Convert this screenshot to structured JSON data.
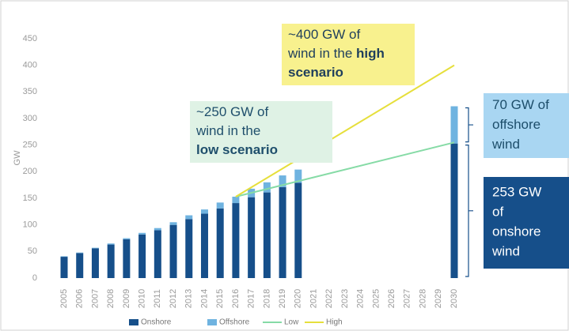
{
  "chart_data": {
    "type": "bar",
    "stacked": true,
    "y_label": "GW",
    "categories": [
      "2005",
      "2006",
      "2007",
      "2008",
      "2009",
      "2010",
      "2011",
      "2012",
      "2013",
      "2014",
      "2015",
      "2016",
      "2017",
      "2018",
      "2019",
      "2020",
      "2021",
      "2022",
      "2023",
      "2024",
      "2025",
      "2026",
      "2027",
      "2028",
      "2029",
      "2030"
    ],
    "series": [
      {
        "name": "Onshore",
        "color": "#164f8a",
        "values": [
          40,
          47,
          56,
          63,
          73,
          82,
          90,
          100,
          111,
          121,
          131,
          141,
          152,
          161,
          171,
          179,
          null,
          null,
          null,
          null,
          null,
          null,
          null,
          null,
          null,
          253
        ]
      },
      {
        "name": "Offshore",
        "color": "#6fb3e0",
        "values": [
          1,
          1,
          1,
          2,
          2,
          3,
          4,
          5,
          7,
          8,
          11,
          12,
          16,
          19,
          22,
          25,
          null,
          null,
          null,
          null,
          null,
          null,
          null,
          null,
          null,
          70
        ]
      },
      {
        "name": "Low",
        "type": "line",
        "color": "#86dba6",
        "x": [
          "2016",
          "2030"
        ],
        "values": [
          153,
          255
        ]
      },
      {
        "name": "High",
        "type": "line",
        "color": "#e6df3c",
        "x": [
          "2016",
          "2030"
        ],
        "values": [
          153,
          400
        ]
      }
    ],
    "ylim": [
      0,
      450
    ],
    "yticks": [
      0,
      50,
      100,
      150,
      200,
      250,
      300,
      350,
      400,
      450
    ],
    "annotations": [
      {
        "name": "high",
        "fill": "#f8f18e",
        "color": "#1f3f5c",
        "lines": [
          [
            {
              "text": "~400 GW of"
            }
          ],
          [
            {
              "text": "wind in the "
            },
            {
              "text": "high",
              "bold": true
            }
          ],
          [
            {
              "text": "scenario",
              "bold": true
            }
          ]
        ]
      },
      {
        "name": "low",
        "fill": "#dff2e5",
        "color": "#1f4f6c",
        "lines": [
          [
            {
              "text": "~250 GW of"
            }
          ],
          [
            {
              "text": "wind in the"
            }
          ],
          [
            {
              "text": "low scenario",
              "bold": true
            }
          ]
        ]
      },
      {
        "name": "offshore",
        "fill": "#a9d6f2",
        "color": "#1d4e6b",
        "lines": [
          [
            {
              "text": "70 GW of"
            }
          ],
          [
            {
              "text": "offshore"
            }
          ],
          [
            {
              "text": "wind"
            }
          ]
        ]
      },
      {
        "name": "onshore",
        "fill": "#164f8a",
        "color": "#ffffff",
        "lines": [
          [
            {
              "text": "253 GW"
            }
          ],
          [
            {
              "text": "of"
            }
          ],
          [
            {
              "text": "onshore"
            }
          ],
          [
            {
              "text": "wind"
            }
          ]
        ]
      }
    ]
  }
}
